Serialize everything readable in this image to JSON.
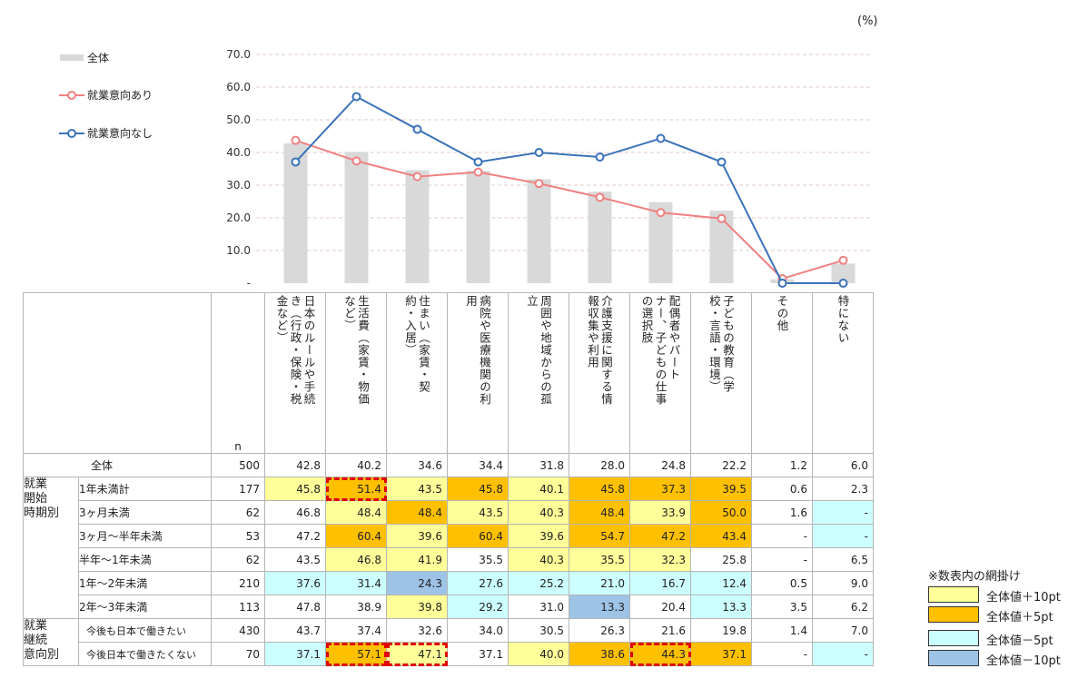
{
  "unit_label": "(%)",
  "legend": [
    {
      "label": "全体",
      "color": "#d9d9d9",
      "kind": "bar"
    },
    {
      "label": "就業意向あり",
      "color": "#f08080",
      "kind": "line"
    },
    {
      "label": "就業意向なし",
      "color": "#3b73b9",
      "kind": "line"
    }
  ],
  "chart_data": {
    "type": "bar",
    "categories": [
      "日本のルールや手続き（行政・保険・税金など）",
      "生活費（家賃・物価など）",
      "住まい（家賃・契約・入居）",
      "病院や医療機関の利用",
      "周囲や地域からの孤立",
      "介護支援に関する情報収集や利用",
      "配偶者やパートナー、子どもの仕事の選択肢",
      "子どもの教育（学校・言語・環境）",
      "その他",
      "特にない"
    ],
    "series": [
      {
        "name": "全体",
        "type": "bar",
        "values": [
          42.8,
          40.2,
          34.6,
          34.4,
          31.8,
          28.0,
          24.8,
          22.2,
          1.2,
          6.0
        ]
      },
      {
        "name": "就業意向あり",
        "type": "line",
        "values": [
          43.7,
          37.4,
          32.6,
          34.0,
          30.5,
          26.3,
          21.6,
          19.8,
          1.4,
          7.0
        ]
      },
      {
        "name": "就業意向なし",
        "type": "line",
        "values": [
          37.1,
          57.1,
          47.1,
          37.1,
          40.0,
          38.6,
          44.3,
          37.1,
          0,
          0
        ]
      }
    ],
    "y_ticks": [
      "70.0",
      "60.0",
      "50.0",
      "40.0",
      "30.0",
      "20.0",
      "10.0",
      "-"
    ],
    "ylim": [
      0,
      70
    ],
    "ylabel": "(%)",
    "grid": true,
    "legend_position": "top-left"
  },
  "table": {
    "n_header": "n",
    "headers": [
      "日本のルールや手続き（行政・保険・税金など）",
      "生活費（家賃・物価など）",
      "住まい（家賃・契約・入居）",
      "病院や医療機関の利用",
      "周囲や地域からの孤立",
      "介護支援に関する情報収集や利用",
      "配偶者やパートナー、子どもの仕事の選択肢",
      "子どもの教育（学校・言語・環境）",
      "その他",
      "特にない"
    ],
    "header_lines": [
      [
        "金など）",
        "き（行政・保険・税",
        "日本のルールや手続"
      ],
      [
        "など）",
        "生活費（家賃・物価"
      ],
      [
        "約・入居）",
        "住まい（家賃・契"
      ],
      [
        "用",
        "病院や医療機関の利"
      ],
      [
        "立",
        "周囲や地域からの孤"
      ],
      [
        "報収集や利用",
        "介護支援に関する情"
      ],
      [
        "の選択肢",
        "ナー、子どもの仕事",
        "配偶者やパート"
      ],
      [
        "校・言語・環境）",
        "子どもの教育（学"
      ],
      [
        "その他"
      ],
      [
        "特にない"
      ]
    ],
    "groups": [
      {
        "label": "就業開始時期別",
        "lines": [
          "就業",
          "開始",
          "時期別"
        ]
      },
      {
        "label": "就業継続意向別",
        "lines": [
          "就業",
          "継続",
          "意向別"
        ]
      }
    ],
    "rows": [
      {
        "label": "全体",
        "n": "500",
        "values": [
          "42.8",
          "40.2",
          "34.6",
          "34.4",
          "31.8",
          "28.0",
          "24.8",
          "22.2",
          "1.2",
          "6.0"
        ],
        "colors": [
          "",
          "",
          "",
          "",
          "",
          "",
          "",
          "",
          "",
          ""
        ],
        "hl": [
          0,
          0,
          0,
          0,
          0,
          0,
          0,
          0,
          0,
          0
        ]
      },
      {
        "label": "1年未満計",
        "n": "177",
        "values": [
          "45.8",
          "51.4",
          "43.5",
          "45.8",
          "40.1",
          "45.8",
          "37.3",
          "39.5",
          "0.6",
          "2.3"
        ],
        "colors": [
          "c1",
          "c2",
          "c1",
          "c2",
          "c1",
          "c2",
          "c2",
          "c2",
          "",
          ""
        ],
        "hl": [
          0,
          1,
          0,
          0,
          0,
          0,
          0,
          0,
          0,
          0
        ]
      },
      {
        "label": "3ヶ月未満",
        "n": "62",
        "values": [
          "46.8",
          "48.4",
          "48.4",
          "43.5",
          "40.3",
          "48.4",
          "33.9",
          "50.0",
          "1.6",
          "-"
        ],
        "colors": [
          "",
          "c1",
          "c2",
          "c1",
          "c1",
          "c2",
          "c1",
          "c2",
          "",
          "c3"
        ],
        "hl": [
          0,
          0,
          0,
          0,
          0,
          0,
          0,
          0,
          0,
          0
        ]
      },
      {
        "label": "3ヶ月～半年未満",
        "n": "53",
        "values": [
          "47.2",
          "60.4",
          "39.6",
          "60.4",
          "39.6",
          "54.7",
          "47.2",
          "43.4",
          "-",
          "-"
        ],
        "colors": [
          "",
          "c2",
          "c1",
          "c2",
          "c1",
          "c2",
          "c2",
          "c2",
          "",
          "c3"
        ],
        "hl": [
          0,
          0,
          0,
          0,
          0,
          0,
          0,
          0,
          0,
          0
        ]
      },
      {
        "label": "半年～1年未満",
        "n": "62",
        "values": [
          "43.5",
          "46.8",
          "41.9",
          "35.5",
          "40.3",
          "35.5",
          "32.3",
          "25.8",
          "-",
          "6.5"
        ],
        "colors": [
          "",
          "c1",
          "c1",
          "",
          "c1",
          "c1",
          "c1",
          "",
          "",
          ""
        ],
        "hl": [
          0,
          0,
          0,
          0,
          0,
          0,
          0,
          0,
          0,
          0
        ]
      },
      {
        "label": "1年～2年未満",
        "n": "210",
        "values": [
          "37.6",
          "31.4",
          "24.3",
          "27.6",
          "25.2",
          "21.0",
          "16.7",
          "12.4",
          "0.5",
          "9.0"
        ],
        "colors": [
          "c3",
          "c3",
          "c4",
          "c3",
          "c3",
          "c3",
          "c3",
          "c3",
          "",
          ""
        ],
        "hl": [
          0,
          0,
          0,
          0,
          0,
          0,
          0,
          0,
          0,
          0
        ]
      },
      {
        "label": "2年～3年未満",
        "n": "113",
        "values": [
          "47.8",
          "38.9",
          "39.8",
          "29.2",
          "31.0",
          "13.3",
          "20.4",
          "13.3",
          "3.5",
          "6.2"
        ],
        "colors": [
          "",
          "",
          "c1",
          "c3",
          "",
          "c4",
          "",
          "c3",
          "",
          ""
        ],
        "hl": [
          0,
          0,
          0,
          0,
          0,
          0,
          0,
          0,
          0,
          0
        ]
      },
      {
        "label": "今後も日本で働きたい",
        "n": "430",
        "values": [
          "43.7",
          "37.4",
          "32.6",
          "34.0",
          "30.5",
          "26.3",
          "21.6",
          "19.8",
          "1.4",
          "7.0"
        ],
        "colors": [
          "",
          "",
          "",
          "",
          "",
          "",
          "",
          "",
          "",
          ""
        ],
        "hl": [
          0,
          0,
          0,
          0,
          0,
          0,
          0,
          0,
          0,
          0
        ]
      },
      {
        "label": "今後日本で働きたくない",
        "n": "70",
        "values": [
          "37.1",
          "57.1",
          "47.1",
          "37.1",
          "40.0",
          "38.6",
          "44.3",
          "37.1",
          "-",
          "-"
        ],
        "colors": [
          "c3",
          "c2",
          "c1",
          "",
          "c1",
          "c2",
          "c2",
          "c2",
          "",
          "c3"
        ],
        "hl": [
          0,
          1,
          1,
          0,
          0,
          0,
          1,
          0,
          0,
          0
        ]
      }
    ]
  },
  "shading_key": {
    "title": "※数表内の網掛け",
    "items": [
      {
        "label": "全体値＋10pt",
        "color": "#ffff99"
      },
      {
        "label": "全体値＋5pt",
        "color": "#ffc000"
      },
      {
        "label": "全体値－5pt",
        "color": "#ccffff"
      },
      {
        "label": "全体値－10pt",
        "color": "#9dc3e6"
      }
    ]
  }
}
